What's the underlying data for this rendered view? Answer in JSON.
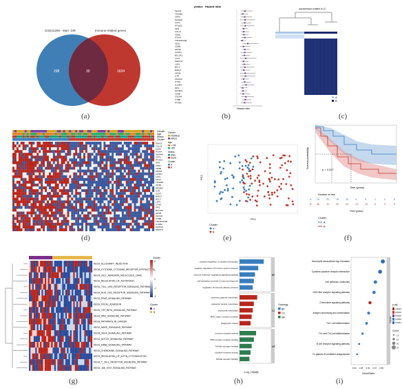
{
  "panel_labels": [
    "(a)",
    "(b)",
    "(c)",
    "(d)",
    "(e)",
    "(f)",
    "(g)",
    "(h)",
    "(i)"
  ],
  "venn": {
    "left_label": "GSE16296 - Mari- DiR",
    "right_label": "Immune-related genes",
    "left_only": "298",
    "overlap": "30",
    "right_only": "1634",
    "left_color": "#3f7fb5",
    "right_color": "#b8271e"
  },
  "forest": {
    "header_pvalue": "pvalue",
    "header_hr": "Hazard ratio",
    "xlabel": "Hazard ratio",
    "genes": [
      "IGHG3",
      "TPSAB1",
      "CPA3",
      "S100A8",
      "CST1",
      "PTGDS",
      "SPN",
      "CCL21",
      "CD69",
      "ITGA4",
      "TNFRSF13B",
      "CD52",
      "CD8B",
      "ZFP36",
      "CASP1",
      "BCL2A1",
      "LAX1",
      "MARCO",
      "LSP1",
      "BCL2",
      "BIRC3",
      "APOB",
      "IL7R",
      "S100A9",
      "CTSS",
      "IL10RA",
      "SPI1",
      "NFKBIA",
      "CD3E",
      "CXCR4",
      "CYBB",
      "PTPRC"
    ]
  },
  "consensus": {
    "title": "consensus matrix k=2",
    "legend": [
      "A",
      "B"
    ],
    "colors": [
      "#a9c7e6",
      "#1a2a6c"
    ]
  },
  "heatmap_d": {
    "annotation_labels": [
      "Gender",
      "Age",
      "Status",
      "Cluster"
    ],
    "legend_title_gender": "Gender",
    "legend_gender": [
      "FEMALE",
      "MALE"
    ],
    "legend_title_age": "Age",
    "legend_age": [
      ">=65",
      "<65"
    ],
    "legend_title_status": "Status",
    "legend_status": [
      "Alive",
      "Dead"
    ],
    "legend_title_cluster": "Cluster",
    "legend_cluster": [
      "A",
      "B"
    ],
    "genes": [
      "IGHG3",
      "CCL21",
      "CD69",
      "ITGA4",
      "S100A8",
      "CST1",
      "PTGDS",
      "SPN",
      "CD52",
      "CD8B",
      "ZFP36",
      "CASP1",
      "LAX1",
      "CPA3",
      "TPSAB1",
      "CD3E",
      "NFKBIA",
      "IL7R",
      "CCR7",
      "BIRC3",
      "BCL2",
      "LSP1",
      "CTSS",
      "SPI1",
      "BCL2A1",
      "APOB",
      "CXCR4",
      "CYBB",
      "TNFRSF13B",
      "IL10RA",
      "S100A9",
      "MARCO"
    ]
  },
  "pca": {
    "xlabel": "PC1",
    "ylabel": "PC2",
    "legend_title": "Cluster",
    "legend": [
      "A",
      "B"
    ],
    "colors": [
      "#3a7dbf",
      "#c0392b"
    ]
  },
  "survival": {
    "ylabel": "Survival probability",
    "xlabel": "Time (years)",
    "pvalue_text": "p = 0.027",
    "risk_title": "Number at risk",
    "risk_xlabel": "Time (years)",
    "risk_rows": [
      {
        "group": "A",
        "values": [
          "29",
          "20",
          "15",
          "10",
          "9",
          "5",
          "2",
          "0",
          "0"
        ]
      },
      {
        "group": "B",
        "values": [
          "48",
          "41",
          "30",
          "20",
          "14",
          "10",
          "6",
          "3",
          "0"
        ]
      }
    ],
    "legend_title": "Cluster",
    "legend": [
      "A",
      "B"
    ],
    "colors": [
      "#3a7dbf",
      "#c0392b"
    ]
  },
  "heatmap_g": {
    "pathways": [
      "KEGG_ALLOGRAFT_REJECTION",
      "KEGG_CYTOKINE_CYTOKINE_RECEPTOR_INTERACTION",
      "KEGG_CELL_ADHESION_MOLECULES_CAMS",
      "KEGG_REGULATION_OF_AUTOPHAGY",
      "KEGG_TOLL_LIKE_RECEPTOR_SIGNALING_PATHWAY",
      "KEGG_NOD_LIKE_RECEPTOR_SIGNALING_PATHWAY",
      "KEGG_PPAR_SIGNALING_PATHWAY",
      "KEGG_FOCAL_ADHESION",
      "KEGG_TGF_BETA_SIGNALING_PATHWAY",
      "KEGG_WNT_SIGNALING_PATHWAY",
      "KEGG_PATHWAYS_IN_CANCER",
      "KEGG_MAPK_SIGNALING_PATHWAY",
      "KEGG_VEGF_SIGNALING_PATHWAY",
      "KEGG_NOTCH_SIGNALING_PATHWAY",
      "KEGG_ERBB_SIGNALING_PATHWAY",
      "KEGG_CHEMOKINE_SIGNALING_PATHWAY",
      "KEGG_REGULATION_OF_ACTIN_CYTOSKELETON",
      "KEGG_T_CELL_RECEPTOR_SIGNALING_PATHWAY",
      "KEGG_JAK_STAT_SIGNALING_PATHWAY"
    ],
    "legend_title": "Cluster",
    "legend": [
      "A",
      "B"
    ],
    "scale_ticks": [
      "2",
      "1",
      "0",
      "-1",
      "-2"
    ]
  },
  "go_bar": {
    "xlabel": "-Log_10(adj)",
    "legend_title": "Ontology",
    "legend": [
      "BP",
      "CC",
      "MF"
    ],
    "colors": [
      "#3a7dbf",
      "#b8271e",
      "#2e7d4f"
    ],
    "strip_labels": [
      "BP",
      "CC",
      "MF"
    ],
    "terms": [
      "positive regulation of cytokine production",
      "negative regulation of immune system process",
      "immune response-regulating signaling pathway",
      "cell activation involved in immune response",
      "regulation of immune effector process",
      "secretory granule membrane",
      "endocytic vesicle membrane",
      "lysosomal membrane",
      "MHC class II protein complex",
      "phagocytic vesicle",
      "immune receptor activity",
      "MHC protein complex binding",
      "Toll-like receptor binding",
      "cytokine receptor activity",
      "RAGE receptor binding"
    ],
    "values": [
      22,
      17,
      14,
      13,
      12,
      16,
      13,
      12,
      11,
      10,
      15,
      13,
      11,
      10,
      9
    ]
  },
  "kegg_dot": {
    "xlabel": "GeneRatio",
    "strip_label": "KEGG",
    "legend_padj_title": "p.adj",
    "legend_padj": [
      "0.0020",
      "0.0015",
      "0.0010",
      "0.0005",
      "0.0001"
    ],
    "legend_count_title": "Count",
    "legend_count": [
      "12",
      "16",
      "20",
      "24"
    ],
    "x_ticks": [
      "0.04",
      "0.05",
      "0.06",
      "0.07",
      "0.08"
    ],
    "terms": [
      "Neutrophil extracellular trap formation",
      "Cytokine-cytokine receptor interaction",
      "Cell adhesion molecules",
      "NOD-like receptor signaling pathway",
      "Chemokine signaling pathway",
      "Antigen processing and presentation",
      "Th17 cell differentiation",
      "Th1 and Th2 cell differentiation",
      "B cell receptor signaling pathway",
      "Fc gamma R-mediated phagocytosis"
    ],
    "gene_ratio": [
      0.082,
      0.078,
      0.071,
      0.069,
      0.063,
      0.061,
      0.058,
      0.052,
      0.047,
      0.044
    ],
    "count": [
      24,
      23,
      21,
      20,
      19,
      18,
      17,
      15,
      14,
      13
    ],
    "padj_color": [
      "#2f6fb0",
      "#2f6fb0",
      "#3a7dbf",
      "#3a7dbf",
      "#b8271e",
      "#3a7dbf",
      "#3a7dbf",
      "#3a7dbf",
      "#3a7dbf",
      "#3a7dbf"
    ]
  }
}
